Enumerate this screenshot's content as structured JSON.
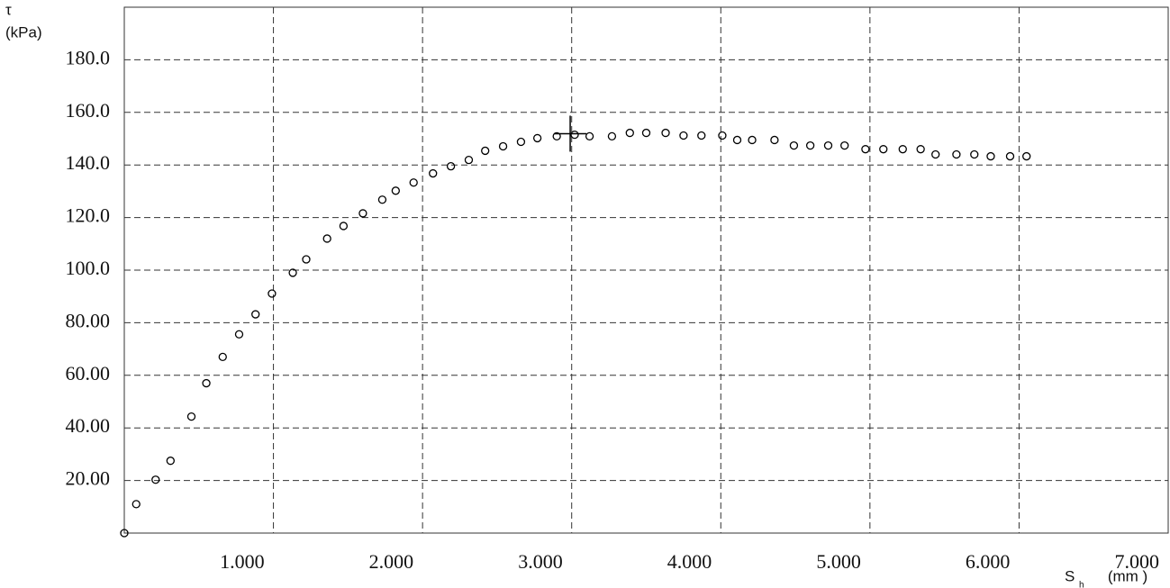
{
  "chart_data": {
    "type": "scatter",
    "ylabel": "τ",
    "yunit": "(kPa)",
    "xlabel": "S",
    "xlabel_sub": "h",
    "xunit": "(mm )",
    "x": [
      0,
      0.08,
      0.21,
      0.31,
      0.45,
      0.55,
      0.66,
      0.77,
      0.88,
      0.99,
      1.13,
      1.22,
      1.36,
      1.47,
      1.6,
      1.73,
      1.82,
      1.94,
      2.07,
      2.19,
      2.31,
      2.42,
      2.54,
      2.66,
      2.77,
      2.9,
      3.02,
      3.12,
      3.27,
      3.39,
      3.5,
      3.63,
      3.75,
      3.87,
      4.01,
      4.11,
      4.21,
      4.36,
      4.49,
      4.6,
      4.72,
      4.83,
      4.97,
      5.09,
      5.22,
      5.34,
      5.44,
      5.58,
      5.7,
      5.81,
      5.94,
      6.05
    ],
    "values": [
      0,
      11,
      20.3,
      27.5,
      44.3,
      57,
      67,
      75.6,
      83.2,
      91.1,
      99,
      104.1,
      112,
      116.8,
      121.6,
      126.8,
      130.2,
      133.3,
      136.8,
      139.5,
      141.9,
      145.4,
      147.1,
      148.8,
      150.2,
      150.9,
      151.5,
      150.9,
      150.9,
      152.2,
      152.2,
      152.2,
      151.2,
      151.2,
      151.2,
      149.5,
      149.5,
      149.5,
      147.4,
      147.4,
      147.4,
      147.4,
      146,
      146,
      146,
      146,
      144,
      144,
      144,
      143.3,
      143.3,
      143.3
    ],
    "peak": {
      "x": 2.99,
      "y": 151.9
    },
    "color": "#000000",
    "xlim": [
      0,
      7
    ],
    "ylim": [
      0,
      200
    ],
    "xticks": [
      {
        "value": 1,
        "label": "1.000"
      },
      {
        "value": 2,
        "label": "2.000"
      },
      {
        "value": 3,
        "label": "3.000"
      },
      {
        "value": 4,
        "label": "4.000"
      },
      {
        "value": 5,
        "label": "5.000"
      },
      {
        "value": 6,
        "label": "6.000"
      },
      {
        "value": 7,
        "label": "7.000"
      }
    ],
    "yticks": [
      {
        "value": 20,
        "label": "20.00"
      },
      {
        "value": 40,
        "label": "40.00"
      },
      {
        "value": 60,
        "label": "60.00"
      },
      {
        "value": 80,
        "label": "80.00"
      },
      {
        "value": 100,
        "label": "100.0"
      },
      {
        "value": 120,
        "label": "120.0"
      },
      {
        "value": 140,
        "label": "140.0"
      },
      {
        "value": 160,
        "label": "160.0"
      },
      {
        "value": 180,
        "label": "180.0"
      }
    ],
    "grid": true
  }
}
